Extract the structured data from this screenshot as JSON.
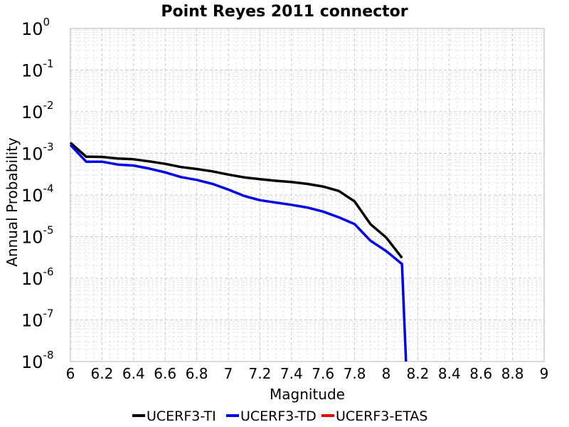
{
  "chart_data": {
    "type": "line",
    "title": "Point Reyes 2011 connector",
    "xlabel": "Magnitude",
    "ylabel": "Annual Probability",
    "xlim": [
      6,
      9
    ],
    "ylim": [
      1e-08,
      1
    ],
    "yscale": "log",
    "grid": true,
    "legend_position": "bottom",
    "x_ticks": [
      "6",
      "6.2",
      "6.4",
      "6.6",
      "6.8",
      "7",
      "7.2",
      "7.4",
      "7.6",
      "7.8",
      "8",
      "8.2",
      "8.4",
      "8.6",
      "8.8",
      "9"
    ],
    "x_tick_values": [
      6,
      6.2,
      6.4,
      6.6,
      6.8,
      7,
      7.2,
      7.4,
      7.6,
      7.8,
      8,
      8.2,
      8.4,
      8.6,
      8.8,
      9
    ],
    "y_ticks": [
      {
        "base": "10",
        "exp": "0",
        "value": 1
      },
      {
        "base": "10",
        "exp": "-1",
        "value": 0.1
      },
      {
        "base": "10",
        "exp": "-2",
        "value": 0.01
      },
      {
        "base": "10",
        "exp": "-3",
        "value": 0.001
      },
      {
        "base": "10",
        "exp": "-4",
        "value": 0.0001
      },
      {
        "base": "10",
        "exp": "-5",
        "value": 1e-05
      },
      {
        "base": "10",
        "exp": "-6",
        "value": 1e-06
      },
      {
        "base": "10",
        "exp": "-7",
        "value": 1e-07
      },
      {
        "base": "10",
        "exp": "-8",
        "value": 1e-08
      }
    ],
    "series": [
      {
        "name": "UCERF3-TI",
        "color": "#000000",
        "x": [
          6.0,
          6.1,
          6.2,
          6.3,
          6.4,
          6.5,
          6.6,
          6.7,
          6.8,
          6.9,
          7.0,
          7.1,
          7.2,
          7.3,
          7.4,
          7.5,
          7.6,
          7.7,
          7.8,
          7.9,
          8.0,
          8.1
        ],
        "y": [
          0.0018,
          0.00083,
          0.00082,
          0.00075,
          0.00072,
          0.00064,
          0.00056,
          0.00047,
          0.00042,
          0.00037,
          0.00031,
          0.000265,
          0.00024,
          0.00022,
          0.000205,
          0.000185,
          0.00016,
          0.000125,
          7e-05,
          2e-05,
          9.5e-06,
          3.1e-06
        ]
      },
      {
        "name": "UCERF3-TD",
        "color": "#0000ee",
        "x": [
          6.0,
          6.1,
          6.2,
          6.3,
          6.4,
          6.5,
          6.6,
          6.7,
          6.8,
          6.9,
          7.0,
          7.1,
          7.2,
          7.3,
          7.4,
          7.5,
          7.6,
          7.7,
          7.8,
          7.9,
          8.0,
          8.1,
          8.125
        ],
        "y": [
          0.0016,
          0.00063,
          0.00063,
          0.00054,
          0.00051,
          0.00043,
          0.00035,
          0.00027,
          0.00023,
          0.000185,
          0.000135,
          9.5e-05,
          7.5e-05,
          6.6e-05,
          5.8e-05,
          5e-05,
          4e-05,
          2.9e-05,
          2e-05,
          8e-06,
          4.5e-06,
          2.2e-06,
          1e-08
        ]
      },
      {
        "name": "UCERF3-ETAS",
        "color": "#ee0000",
        "x": [],
        "y": []
      }
    ]
  }
}
